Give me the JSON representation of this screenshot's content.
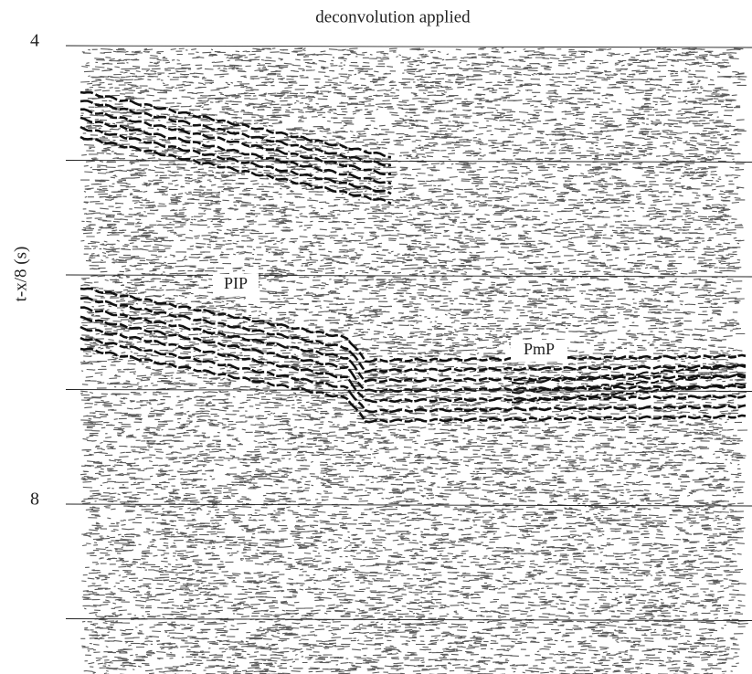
{
  "chart_data": {
    "type": "seismic",
    "title": "deconvolution applied",
    "y_label": "t-x/8 (s)",
    "ylim": [
      4,
      9.5
    ],
    "inverted": true,
    "yticks": [
      4,
      8
    ],
    "gridlines": [
      4,
      5,
      6,
      7,
      8,
      9
    ],
    "annotations": [
      "PIP",
      "PmP"
    ]
  }
}
